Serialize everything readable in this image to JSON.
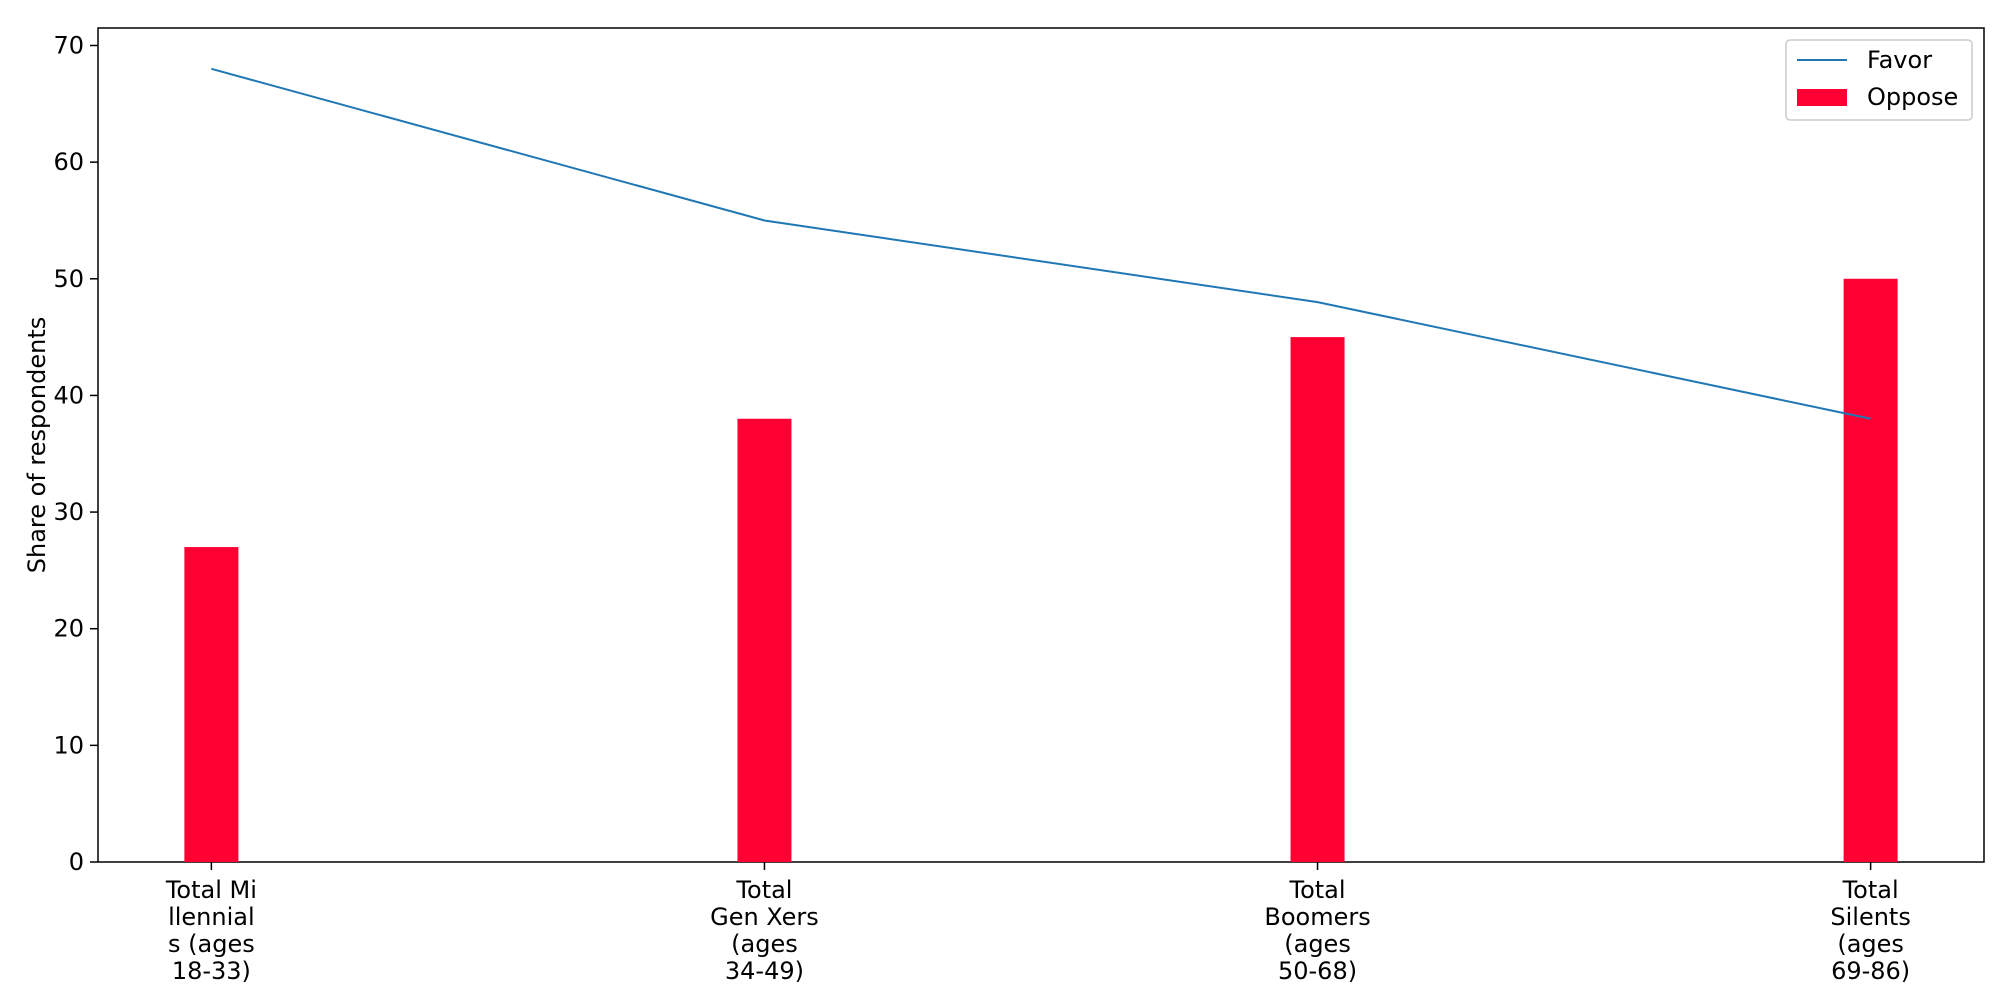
{
  "chart_data": {
    "type": "bar",
    "categories": [
      [
        "Total Mi",
        "llennial",
        "s (ages",
        "18-33)"
      ],
      [
        "Total",
        "Gen Xers",
        "(ages",
        "34-49)"
      ],
      [
        "Total",
        "Boomers",
        "(ages",
        "50-68)"
      ],
      [
        "Total",
        "Silents",
        "(ages",
        "69-86)"
      ]
    ],
    "series": [
      {
        "name": "Favor",
        "kind": "line",
        "color": "#1f77b4",
        "values": [
          68,
          55,
          48,
          38
        ]
      },
      {
        "name": "Oppose",
        "kind": "bar",
        "color": "#ff0033",
        "values": [
          27,
          38,
          45,
          50
        ]
      }
    ],
    "title": "",
    "xlabel": "",
    "ylabel": "Share of respondents",
    "ylim": [
      0,
      71.5
    ],
    "yticks": [
      0,
      10,
      20,
      30,
      40,
      50,
      60,
      70
    ],
    "grid": false,
    "legend": "top-right"
  }
}
